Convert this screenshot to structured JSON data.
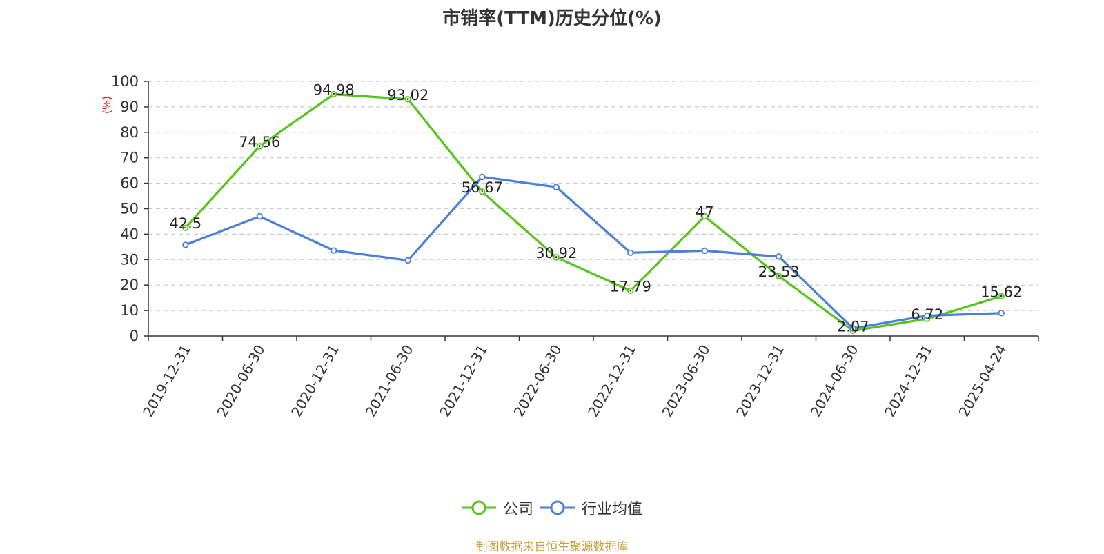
{
  "title": "市销率(TTM)历史分位(%)",
  "source": "制图数据来自恒生聚源数据库",
  "colors": {
    "company": "#52c41a",
    "industry": "#4a7fdb",
    "unit": "#e60000",
    "source": "#c8a040",
    "grid": "#cccccc",
    "axis": "#333333"
  },
  "chart_data": {
    "type": "line",
    "title": "市销率(TTM)历史分位(%)",
    "ylabel": "(%)",
    "ylim": [
      0,
      100
    ],
    "yticks": [
      0,
      10,
      20,
      30,
      40,
      50,
      60,
      70,
      80,
      90,
      100
    ],
    "grid": true,
    "legend_position": "bottom",
    "x": [
      "2019-12-31",
      "2020-06-30",
      "2020-12-31",
      "2021-06-30",
      "2021-12-31",
      "2022-06-30",
      "2022-12-31",
      "2023-06-30",
      "2023-12-31",
      "2024-06-30",
      "2024-12-31",
      "2025-04-24"
    ],
    "series": [
      {
        "name": "公司",
        "values": [
          42.5,
          74.56,
          94.98,
          93.02,
          56.67,
          30.92,
          17.79,
          47,
          23.53,
          2.07,
          6.72,
          15.62
        ],
        "show_labels": true
      },
      {
        "name": "行业均值",
        "values": [
          35.8,
          47.0,
          33.6,
          29.7,
          62.5,
          58.5,
          32.7,
          33.5,
          31.2,
          3.0,
          8.0,
          9.0
        ],
        "show_labels": false
      }
    ]
  }
}
